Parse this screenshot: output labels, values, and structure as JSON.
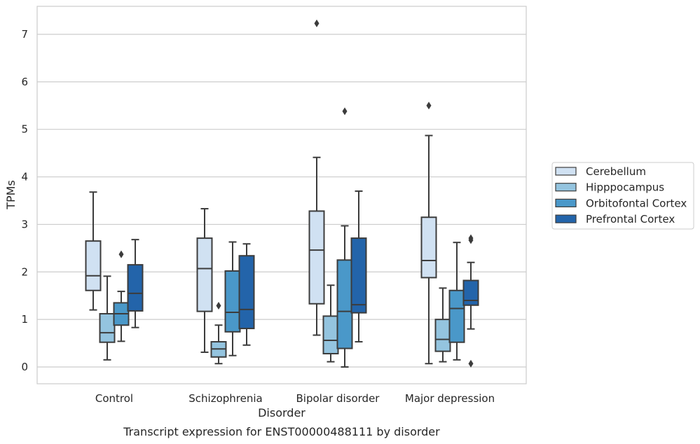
{
  "chart_data": {
    "type": "box",
    "caption": "Transcript expression for ENST00000488111 by disorder",
    "xlabel": "Disorder",
    "ylabel": "TPMs",
    "ylim": [
      -0.35,
      7.6
    ],
    "yticks": [
      0,
      1,
      2,
      3,
      4,
      5,
      6,
      7
    ],
    "grid": "horizontal",
    "legend_placement": "right",
    "categories": [
      "Control",
      "Schizophrenia",
      "Bipolar disorder",
      "Major depression"
    ],
    "series": [
      {
        "name": "Cerebellum",
        "color": "#d0e1f2",
        "boxes": [
          {
            "whislo": 1.2,
            "q1": 1.61,
            "med": 1.92,
            "q3": 2.65,
            "whishi": 3.68,
            "fliers": []
          },
          {
            "whislo": 0.31,
            "q1": 1.17,
            "med": 2.07,
            "q3": 2.71,
            "whishi": 3.33,
            "fliers": []
          },
          {
            "whislo": 0.67,
            "q1": 1.33,
            "med": 2.46,
            "q3": 3.28,
            "whishi": 4.41,
            "fliers": [
              7.23
            ]
          },
          {
            "whislo": 0.07,
            "q1": 1.88,
            "med": 2.24,
            "q3": 3.15,
            "whishi": 4.87,
            "fliers": [
              5.5
            ]
          }
        ]
      },
      {
        "name": "Hipppocampus",
        "color": "#94c4df",
        "boxes": [
          {
            "whislo": 0.15,
            "q1": 0.52,
            "med": 0.72,
            "q3": 1.12,
            "whishi": 1.91,
            "fliers": []
          },
          {
            "whislo": 0.07,
            "q1": 0.21,
            "med": 0.38,
            "q3": 0.53,
            "whishi": 0.88,
            "fliers": [
              1.29
            ]
          },
          {
            "whislo": 0.11,
            "q1": 0.28,
            "med": 0.56,
            "q3": 1.07,
            "whishi": 1.72,
            "fliers": []
          },
          {
            "whislo": 0.11,
            "q1": 0.33,
            "med": 0.58,
            "q3": 1.0,
            "whishi": 1.66,
            "fliers": []
          }
        ]
      },
      {
        "name": "Orbitofontal Cortex",
        "color": "#4a98c9",
        "boxes": [
          {
            "whislo": 0.54,
            "q1": 0.88,
            "med": 1.12,
            "q3": 1.35,
            "whishi": 1.59,
            "fliers": [
              2.37
            ]
          },
          {
            "whislo": 0.24,
            "q1": 0.74,
            "med": 1.15,
            "q3": 2.02,
            "whishi": 2.63,
            "fliers": []
          },
          {
            "whislo": 0.0,
            "q1": 0.39,
            "med": 1.17,
            "q3": 2.25,
            "whishi": 2.97,
            "fliers": [
              5.38
            ]
          },
          {
            "whislo": 0.15,
            "q1": 0.52,
            "med": 1.23,
            "q3": 1.61,
            "whishi": 2.62,
            "fliers": []
          }
        ]
      },
      {
        "name": "Prefrontal Cortex",
        "color": "#2364aa",
        "boxes": [
          {
            "whislo": 0.83,
            "q1": 1.18,
            "med": 1.55,
            "q3": 2.15,
            "whishi": 2.68,
            "fliers": []
          },
          {
            "whislo": 0.46,
            "q1": 0.81,
            "med": 1.21,
            "q3": 2.34,
            "whishi": 2.59,
            "fliers": []
          },
          {
            "whislo": 0.53,
            "q1": 1.14,
            "med": 1.31,
            "q3": 2.71,
            "whishi": 3.7,
            "fliers": []
          },
          {
            "whislo": 0.8,
            "q1": 1.3,
            "med": 1.4,
            "q3": 1.82,
            "whishi": 2.2,
            "fliers": [
              2.67,
              2.71,
              0.07
            ]
          }
        ]
      }
    ]
  }
}
